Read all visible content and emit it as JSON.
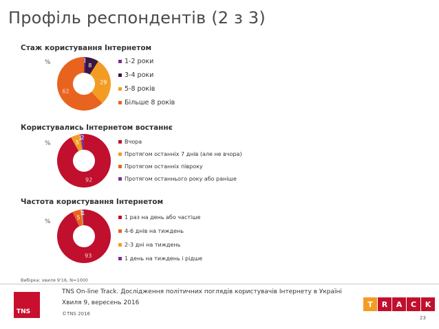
{
  "title": "Профіль респондентів (2 з 3)",
  "chart_data": [
    {
      "type": "pie",
      "title": "Стаж користування Інтернетом",
      "unit": "%",
      "slices": [
        {
          "label": "1-2 роки",
          "value": 1,
          "color": "#7b2f8e"
        },
        {
          "label": "3-4 роки",
          "value": 8,
          "color": "#3a1640"
        },
        {
          "label": "5-8 років",
          "value": 29,
          "color": "#f39c24"
        },
        {
          "label": "Більше 8 років",
          "value": 62,
          "color": "#e8641e"
        }
      ]
    },
    {
      "type": "pie",
      "title": "Користувались Інтернетом востаннє",
      "unit": "%",
      "slices": [
        {
          "label": "Вчора",
          "value": 92,
          "color": "#c0102e"
        },
        {
          "label": "Протягом останніх 7 днів (але не вчора)",
          "value": 5,
          "color": "#f39c24"
        },
        {
          "label": "Протягом останніх півроку",
          "value": 1,
          "color": "#e8641e"
        },
        {
          "label": "Протягом останнього року або раніше",
          "value": 2,
          "color": "#7b2f8e"
        }
      ]
    },
    {
      "type": "pie",
      "title": "Частота користування Інтернетом",
      "unit": "%",
      "slices": [
        {
          "label": "1 раз на день або частіше",
          "value": 93,
          "color": "#c0102e"
        },
        {
          "label": "4-6 днів на тиждень",
          "value": 5,
          "color": "#e8641e"
        },
        {
          "label": "2-3 дні на тиждень",
          "value": 1,
          "color": "#f39c24"
        },
        {
          "label": "1 день на тиждень і рідше",
          "value": 1,
          "color": "#7b2f8e"
        }
      ]
    }
  ],
  "sample_note": "Вибірка: хвиля 9'16, N=1000",
  "footer": {
    "line1": "TNS On-line Track. Дослідження політичних поглядів користувачів Інтернету в Україні",
    "line2": "Хвиля 9, вересень 2016",
    "copyright": "©TNS 2016",
    "logo_text": "TNS",
    "track_letters": [
      "T",
      "R",
      "A",
      "C",
      "K"
    ],
    "track_colors": [
      "#f39c24",
      "#c0102e",
      "#c0102e",
      "#c0102e",
      "#c0102e"
    ],
    "page_number": "23"
  }
}
